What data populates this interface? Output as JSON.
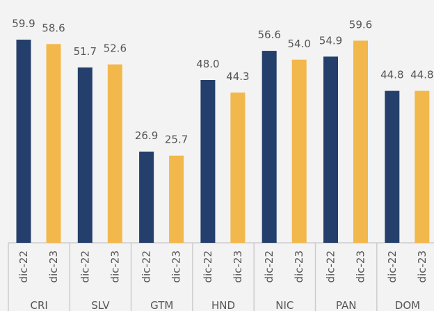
{
  "chart_data": {
    "type": "bar",
    "categories": [
      "CRI",
      "SLV",
      "GTM",
      "HND",
      "NIC",
      "PAN",
      "DOM"
    ],
    "series": [
      {
        "name": "dic-22",
        "color": "#243f6b",
        "values": [
          59.9,
          51.7,
          26.9,
          48.0,
          56.6,
          54.9,
          44.8
        ],
        "value_labels": [
          "59.9",
          "51.7",
          "26.9",
          "48.0",
          "56.6",
          "54.9",
          "44.8"
        ]
      },
      {
        "name": "dic-23",
        "color": "#f2b84b",
        "values": [
          58.6,
          52.6,
          25.7,
          44.3,
          54.0,
          59.6,
          44.8
        ],
        "value_labels": [
          "58.6",
          "52.6",
          "25.7",
          "44.3",
          "54.0",
          "59.6",
          "44.8"
        ]
      }
    ],
    "ylim": [
      0,
      70
    ]
  }
}
